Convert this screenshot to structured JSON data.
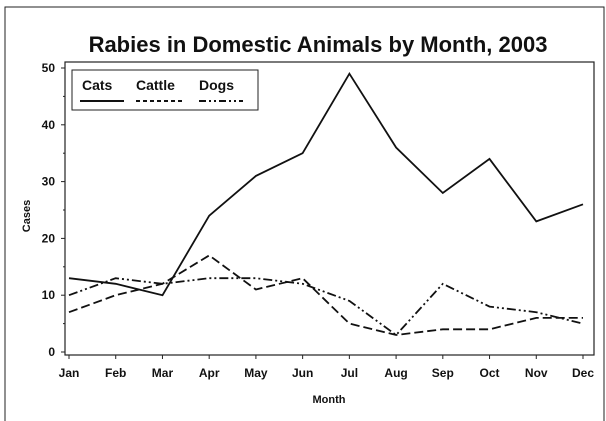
{
  "chart_data": {
    "type": "line",
    "title": "Rabies in Domestic Animals by Month, 2003",
    "xlabel": "Month",
    "ylabel": "Cases",
    "categories": [
      "Jan",
      "Feb",
      "Mar",
      "Apr",
      "May",
      "Jun",
      "Jul",
      "Aug",
      "Sep",
      "Oct",
      "Nov",
      "Dec"
    ],
    "ylim": [
      0,
      50
    ],
    "yticks": [
      0,
      10,
      20,
      30,
      40,
      50
    ],
    "grid": false,
    "legend_position": "top-left",
    "series": [
      {
        "name": "Cats",
        "style": "solid",
        "color": "#111111",
        "values": [
          13,
          12,
          10,
          24,
          31,
          35,
          49,
          36,
          28,
          34,
          23,
          26
        ]
      },
      {
        "name": "Cattle",
        "style": "dashed",
        "color": "#111111",
        "values": [
          7,
          10,
          12,
          17,
          11,
          13,
          5,
          3,
          4,
          4,
          6,
          6
        ]
      },
      {
        "name": "Dogs",
        "style": "dash-dot-dot",
        "color": "#111111",
        "values": [
          10,
          13,
          12,
          13,
          13,
          12,
          9,
          3,
          12,
          8,
          7,
          5
        ]
      }
    ]
  }
}
